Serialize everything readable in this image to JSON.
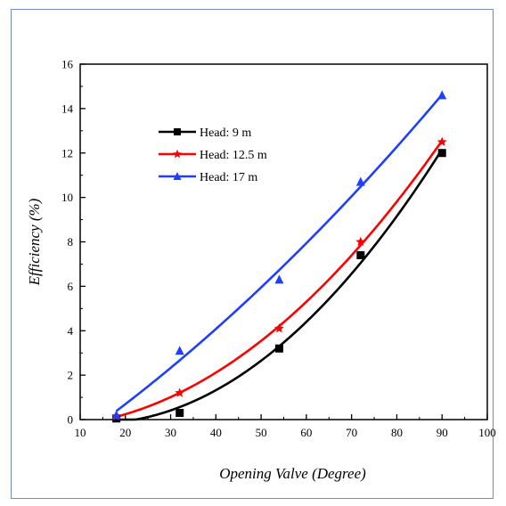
{
  "chart_data": {
    "type": "line",
    "title": "",
    "xlabel": "Opening Valve (Degree)",
    "ylabel": "Efficiency (%)",
    "xlim": [
      10,
      100
    ],
    "ylim": [
      0,
      16
    ],
    "x_ticks": [
      10,
      20,
      30,
      40,
      50,
      60,
      70,
      80,
      90,
      100
    ],
    "y_ticks": [
      0,
      2,
      4,
      6,
      8,
      10,
      12,
      14,
      16
    ],
    "grid": false,
    "legend_position": "upper-left",
    "series": [
      {
        "name": "Head: 9 m",
        "color": "#000000",
        "marker": "square",
        "x": [
          18,
          32,
          54,
          72,
          90
        ],
        "y": [
          0.05,
          0.3,
          3.2,
          7.4,
          12.0
        ]
      },
      {
        "name": "Head: 12.5 m",
        "color": "#ff0000",
        "marker": "star",
        "x": [
          18,
          32,
          54,
          72,
          90
        ],
        "y": [
          0.15,
          1.2,
          4.1,
          8.0,
          12.5
        ]
      },
      {
        "name": "Head: 17 m",
        "color": "#1f3fff",
        "marker": "triangle",
        "x": [
          18,
          32,
          54,
          72,
          90
        ],
        "y": [
          0.2,
          3.1,
          6.3,
          10.7,
          14.6
        ]
      }
    ]
  }
}
